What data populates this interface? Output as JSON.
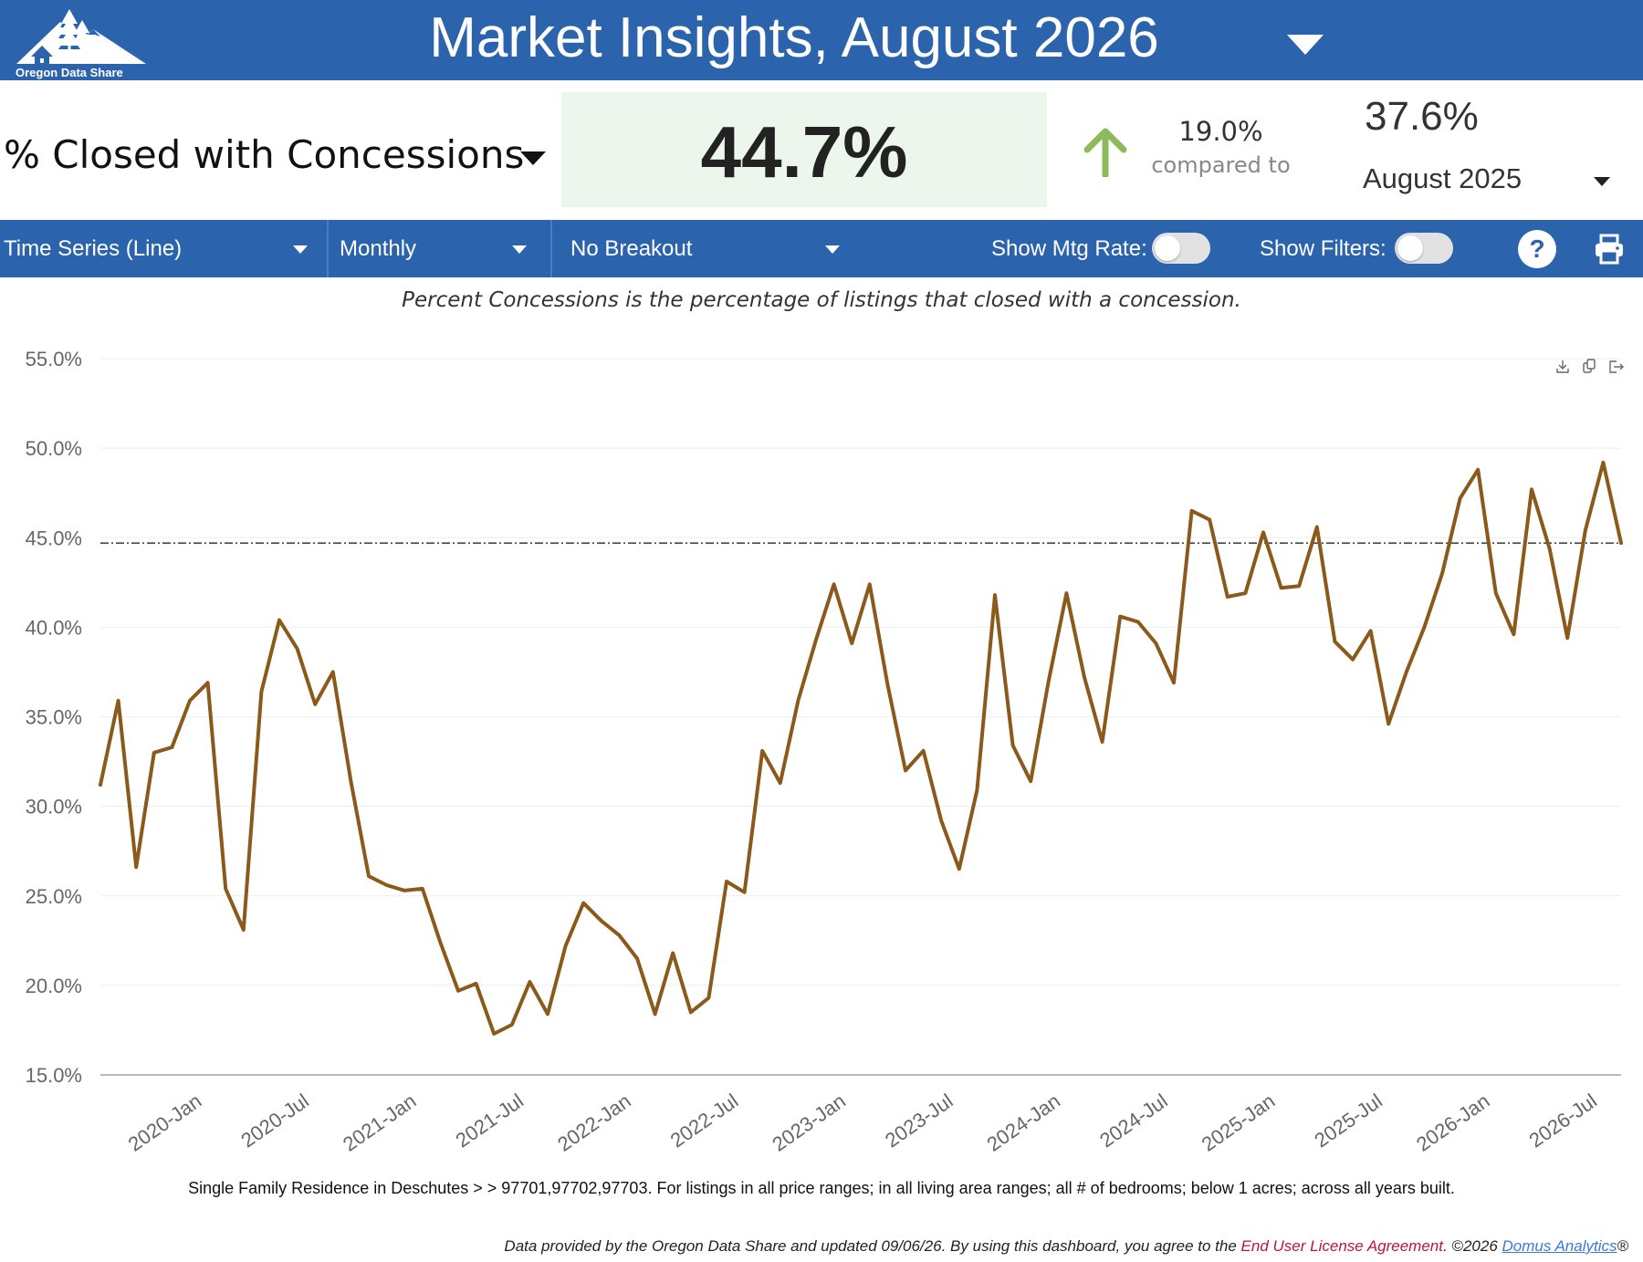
{
  "header": {
    "logo_text": "Oregon Data Share",
    "title": "Market Insights, August 2026"
  },
  "kpi": {
    "metric_label": "% Closed with Concessions",
    "current_value": "44.7%",
    "change_pct": "19.0%",
    "compared_to_label": "compared to",
    "compare_value": "37.6%",
    "compare_period": "August 2025",
    "trend": "up",
    "value_bg_color": "#ecf6ec",
    "arrow_color": "#8dba5a"
  },
  "controls": {
    "chart_type": "Time Series (Line)",
    "frequency": "Monthly",
    "breakout": "No Breakout",
    "show_mtg_rate_label": "Show Mtg Rate:",
    "show_mtg_rate": false,
    "show_filters_label": "Show Filters:",
    "show_filters": false,
    "help_label": "?"
  },
  "description": "Percent Concessions is the percentage of listings that closed with a concession.",
  "filter_summary": "Single Family Residence in Deschutes > > 97701,97702,97703. For listings in all price ranges; in all living area ranges; all # of bedrooms; below 1 acres; across all years built.",
  "footer": {
    "text_before": "Data provided by the Oregon Data Share and updated 09/06/26.  By using this dashboard, you agree to the ",
    "eula_link": "End User License Agreement",
    "text_middle": ".  ©2026 ",
    "domus_link": "Domus Analytics",
    "registered": "®"
  },
  "chart_data": {
    "type": "line",
    "x_tick_labels": [
      "2020-Jan",
      "2020-Jul",
      "2021-Jan",
      "2021-Jul",
      "2022-Jan",
      "2022-Jul",
      "2023-Jan",
      "2023-Jul",
      "2024-Jan",
      "2024-Jul",
      "2025-Jan",
      "2025-Jul",
      "2026-Jan",
      "2026-Jul"
    ],
    "y_tick_labels": [
      "15.0%",
      "20.0%",
      "25.0%",
      "30.0%",
      "35.0%",
      "40.0%",
      "45.0%",
      "50.0%",
      "55.0%"
    ],
    "ylim": [
      15,
      55
    ],
    "y_ticks": [
      15,
      20,
      25,
      30,
      35,
      40,
      45,
      50,
      55
    ],
    "reference_line": 44.7,
    "line_color": "#8b5a1b",
    "grid": true,
    "start_label": "2019-Sep",
    "series": [
      {
        "values": [
          31.2,
          35.9,
          26.6,
          33.0,
          33.3,
          35.9,
          36.9,
          25.4,
          23.1,
          36.4,
          40.4,
          38.8,
          35.7,
          37.5,
          31.4,
          26.1,
          25.6,
          25.3,
          25.4,
          22.4,
          19.7,
          20.1,
          17.3,
          17.8,
          20.2,
          18.4,
          22.2,
          24.6,
          23.6,
          22.8,
          21.5,
          18.4,
          21.8,
          18.5,
          19.3,
          25.8,
          25.2,
          33.1,
          31.3,
          35.9,
          39.3,
          42.4,
          39.1,
          42.4,
          36.8,
          32.0,
          33.1,
          29.2,
          26.5,
          30.9,
          41.8,
          33.4,
          31.4,
          37.0,
          41.9,
          37.2,
          33.6,
          40.6,
          40.3,
          39.1,
          36.9,
          46.5,
          46.0,
          41.7,
          41.9,
          45.3,
          42.2,
          42.3,
          45.6,
          39.2,
          38.2,
          39.8,
          34.6,
          37.5,
          40.0,
          43.0,
          47.2,
          48.8,
          41.9,
          39.6,
          47.7,
          44.4,
          39.4,
          45.4,
          49.2,
          44.7
        ]
      }
    ]
  }
}
